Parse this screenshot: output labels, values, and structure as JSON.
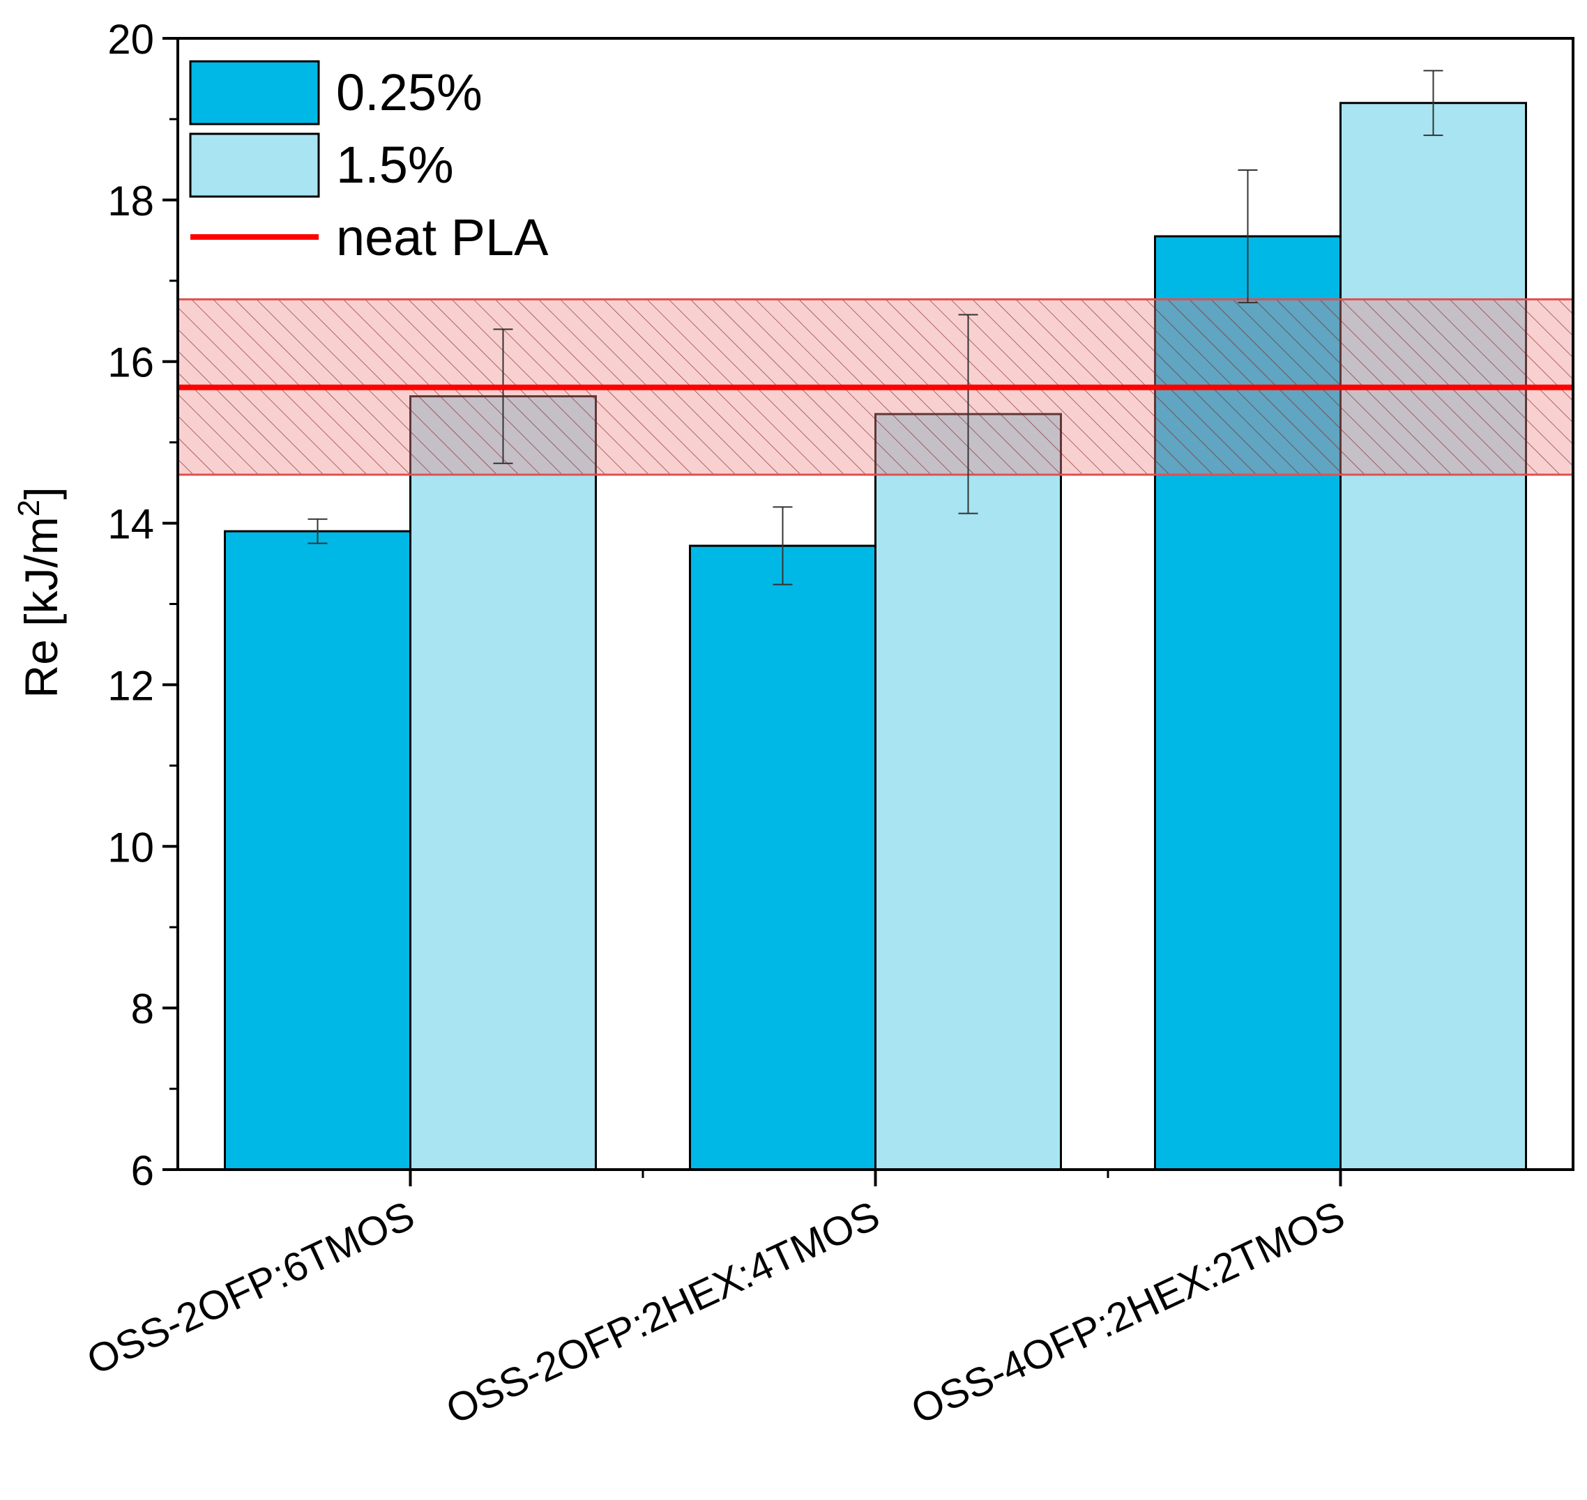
{
  "chart_data": {
    "type": "bar",
    "title": "",
    "xlabel": "",
    "ylabel": "Re [kJ/m",
    "ylabel_sup": "2",
    "ylabel_end": "]",
    "ylim": [
      6,
      20
    ],
    "yticks": [
      "6",
      "8",
      "10",
      "12",
      "14",
      "16",
      "18",
      "20"
    ],
    "categories": [
      "OSS-2OFP:6TMOS",
      "OSS-2OFP:2HEX:4TMOS",
      "OSS-4OFP:2HEX:2TMOS"
    ],
    "series": [
      {
        "name": "0.25%",
        "color": "#00b8e6",
        "values": [
          13.9,
          13.72,
          17.55
        ],
        "errors": [
          0.15,
          0.48,
          0.82
        ]
      },
      {
        "name": "1.5%",
        "color": "#a8e4f2",
        "values": [
          15.57,
          15.35,
          19.2
        ],
        "errors": [
          0.83,
          1.23,
          0.4
        ]
      }
    ],
    "reference": {
      "name": "neat PLA",
      "value": 15.68,
      "band": [
        14.6,
        16.77
      ],
      "color": "#ff0000"
    },
    "legend": {
      "position": "top-left",
      "entries": [
        "0.25%",
        "1.5%",
        "neat PLA"
      ]
    },
    "grid": false
  }
}
